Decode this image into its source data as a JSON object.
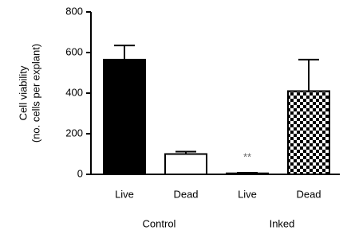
{
  "chart_data": {
    "type": "bar",
    "ylabel": [
      "Cell viability",
      "(no. cells per explant)"
    ],
    "groups": [
      {
        "name": "Control",
        "categories": [
          "Live",
          "Dead"
        ],
        "values": [
          565,
          100
        ],
        "errors": [
          70,
          12
        ],
        "fills": [
          "#000000",
          "#ffffff"
        ]
      },
      {
        "name": "Inked",
        "categories": [
          "Live",
          "Dead"
        ],
        "values": [
          5,
          410
        ],
        "errors": [
          3,
          155
        ],
        "fills": [
          "#ffffff",
          "checkerboard"
        ]
      }
    ],
    "annotation": "**",
    "ylim": [
      0,
      800
    ],
    "yticks": [
      0,
      200,
      400,
      600,
      800
    ]
  }
}
